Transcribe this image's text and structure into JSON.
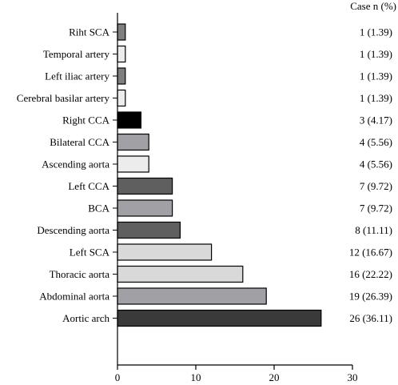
{
  "chart_data": {
    "type": "bar",
    "orientation": "horizontal",
    "title": "",
    "xlabel": "",
    "ylabel": "",
    "right_column_header": "Case n (%)",
    "xlim": [
      0,
      30
    ],
    "x_ticks": [
      "0",
      "10",
      "20",
      "30"
    ],
    "grid": false,
    "legend": "none",
    "categories": [
      "Riht SCA",
      "Temporal artery",
      "Left iliac artery",
      "Cerebral basilar artery",
      "Right CCA",
      "Bilateral CCA",
      "Ascending aorta",
      "Left CCA",
      "BCA",
      "Descending aorta",
      "Left SCA",
      "Thoracic aorta",
      "Abdominal aorta",
      "Aortic arch"
    ],
    "values": [
      1,
      1,
      1,
      1,
      3,
      4,
      4,
      7,
      7,
      8,
      12,
      16,
      19,
      26
    ],
    "case_labels": [
      "1 (1.39)",
      "1 (1.39)",
      "1 (1.39)",
      "1 (1.39)",
      "3 (4.17)",
      "4 (5.56)",
      "4 (5.56)",
      "7 (9.72)",
      "7 (9.72)",
      "8 (11.11)",
      "12 (16.67)",
      "16 (22.22)",
      "19 (26.39)",
      "26 (36.11)"
    ],
    "bar_colors": [
      "#7f7f7f",
      "#ececec",
      "#7f7f7f",
      "#ececec",
      "#000000",
      "#a0a0a5",
      "#ececec",
      "#5f5f5f",
      "#a0a0a5",
      "#5f5f5f",
      "#d9d9d9",
      "#d9d9d9",
      "#a0a0a5",
      "#3a3a3a"
    ]
  }
}
